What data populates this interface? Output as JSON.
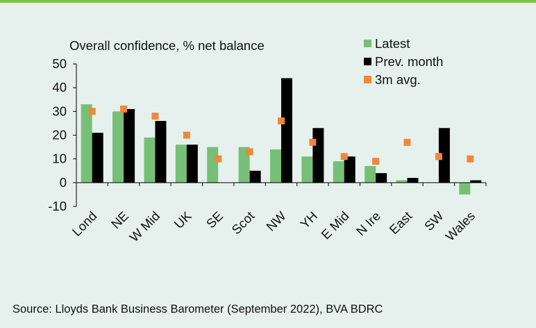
{
  "source_text": "Source: Lloyds Bank Business Barometer (September 2022), BVA BDRC",
  "colors": {
    "background": "#e6f1ee",
    "accent_rule": "#7cc242",
    "latest": "#77bf77",
    "prev": "#000000",
    "avg": "#f0873a"
  },
  "chart_data": {
    "type": "bar",
    "title": "Overall confidence, % net balance",
    "categories": [
      "Lond",
      "NE",
      "W Mid",
      "UK",
      "SE",
      "Scot",
      "NW",
      "YH",
      "E Mid",
      "N Ire",
      "East",
      "SW",
      "Wales"
    ],
    "series": [
      {
        "name": "Latest",
        "type": "bar",
        "values": [
          33,
          30,
          19,
          16,
          15,
          15,
          14,
          11,
          9,
          7,
          1,
          0,
          -5
        ]
      },
      {
        "name": "Prev. month",
        "type": "bar",
        "values": [
          21,
          31,
          26,
          16,
          0,
          5,
          44,
          23,
          11,
          4,
          2,
          23,
          1
        ]
      },
      {
        "name": "3m avg.",
        "type": "scatter",
        "values": [
          30,
          31,
          28,
          20,
          10,
          13,
          26,
          17,
          11,
          9,
          17,
          11,
          10
        ]
      }
    ],
    "ylim": [
      -10,
      50
    ],
    "yticks": [
      -10,
      0,
      10,
      20,
      30,
      40,
      50
    ],
    "legend_position": "top-right",
    "grid": false
  }
}
